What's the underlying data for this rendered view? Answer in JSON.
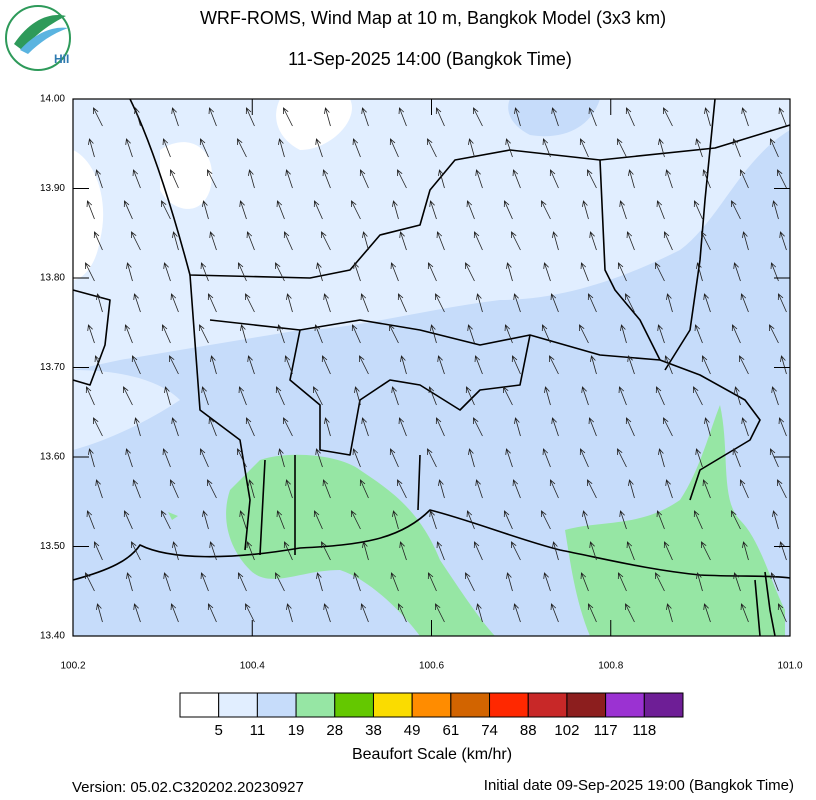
{
  "header": {
    "title": "WRF-ROMS, Wind Map at 10 m, Bangkok Model (3x3 km)",
    "subtitle": "11-Sep-2025 14:00 (Bangkok Time)",
    "logo": "HII"
  },
  "map": {
    "xlim": [
      100.2,
      101.0
    ],
    "ylim": [
      13.4,
      14.0
    ],
    "xticks": [
      100.2,
      100.4,
      100.6,
      100.8,
      {
        "value": 101.0,
        "label": "101.0"
      }
    ],
    "yticks": [
      {
        "value": 13.4,
        "label": "13.40"
      },
      {
        "value": 13.5,
        "label": "13.50"
      },
      {
        "value": 13.6,
        "label": "13.60"
      },
      {
        "value": 13.7,
        "label": "13.70"
      },
      {
        "value": 13.8,
        "label": "13.80"
      },
      {
        "value": 13.9,
        "label": "13.90"
      },
      {
        "value": 14.0,
        "label": "14.00"
      }
    ]
  },
  "colorbar": {
    "title": "Beaufort Scale (km/hr)",
    "colors": [
      "#ffffff",
      "#e1eeff",
      "#c6dcfa",
      "#96e6a4",
      "#64c800",
      "#fadc00",
      "#ff8c00",
      "#d26400",
      "#ff2800",
      "#c82828",
      "#8c1e1e",
      "#9b32d2",
      "#6e1e96"
    ],
    "labels": [
      5,
      11,
      19,
      28,
      38,
      49,
      61,
      74,
      88,
      102,
      117,
      118
    ]
  },
  "footer": {
    "version": "Version: 05.02.C320202.20230927",
    "initial": "Initial date 09-Sep-2025 19:00 (Bangkok Time)"
  }
}
